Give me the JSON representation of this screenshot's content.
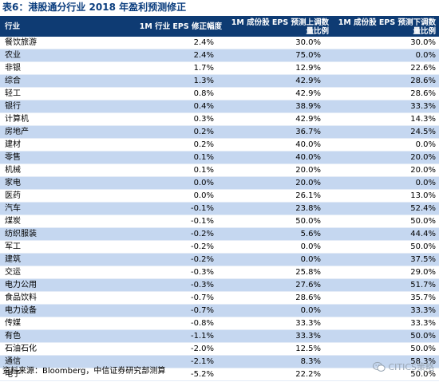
{
  "title": "表6：港股通分行业 2018 年盈利预测修正",
  "table": {
    "headers": [
      "行业",
      "1M 行业 EPS 修正幅度",
      "1M 成份股 EPS 预测上调数量比例",
      "1M 成份股 EPS 预测下调数量比例"
    ],
    "rows": [
      [
        "餐饮旅游",
        "2.4%",
        "30.0%",
        "30.0%"
      ],
      [
        "农业",
        "2.4%",
        "75.0%",
        "0.0%"
      ],
      [
        "非银",
        "1.7%",
        "12.9%",
        "22.6%"
      ],
      [
        "综合",
        "1.3%",
        "42.9%",
        "28.6%"
      ],
      [
        "轻工",
        "0.8%",
        "42.9%",
        "28.6%"
      ],
      [
        "银行",
        "0.4%",
        "38.9%",
        "33.3%"
      ],
      [
        "计算机",
        "0.3%",
        "42.9%",
        "14.3%"
      ],
      [
        "房地产",
        "0.2%",
        "36.7%",
        "24.5%"
      ],
      [
        "建材",
        "0.2%",
        "40.0%",
        "0.0%"
      ],
      [
        "零售",
        "0.1%",
        "40.0%",
        "20.0%"
      ],
      [
        "机械",
        "0.1%",
        "20.0%",
        "20.0%"
      ],
      [
        "家电",
        "0.0%",
        "20.0%",
        "0.0%"
      ],
      [
        "医药",
        "0.0%",
        "26.1%",
        "13.0%"
      ],
      [
        "汽车",
        "-0.1%",
        "23.8%",
        "52.4%"
      ],
      [
        "煤炭",
        "-0.1%",
        "50.0%",
        "50.0%"
      ],
      [
        "纺织服装",
        "-0.2%",
        "5.6%",
        "44.4%"
      ],
      [
        "军工",
        "-0.2%",
        "0.0%",
        "50.0%"
      ],
      [
        "建筑",
        "-0.2%",
        "0.0%",
        "37.5%"
      ],
      [
        "交运",
        "-0.3%",
        "25.8%",
        "29.0%"
      ],
      [
        "电力公用",
        "-0.3%",
        "27.6%",
        "51.7%"
      ],
      [
        "食品饮料",
        "-0.7%",
        "28.6%",
        "35.7%"
      ],
      [
        "电力设备",
        "-0.7%",
        "0.0%",
        "33.3%"
      ],
      [
        "传媒",
        "-0.8%",
        "33.3%",
        "33.3%"
      ],
      [
        "有色",
        "-1.1%",
        "33.3%",
        "50.0%"
      ],
      [
        "石油石化",
        "-2.0%",
        "12.5%",
        "50.0%"
      ],
      [
        "通信",
        "-2.1%",
        "8.3%",
        "58.3%"
      ],
      [
        "电子",
        "-5.2%",
        "22.2%",
        "50.0%"
      ]
    ]
  },
  "source": "资料来源：Bloomberg，中信证券研究部测算",
  "watermark": "CITICS策略",
  "colors": {
    "header_bg": "#0e3b73",
    "stripe": "#c5d7f0",
    "title": "#0a3d7e"
  }
}
